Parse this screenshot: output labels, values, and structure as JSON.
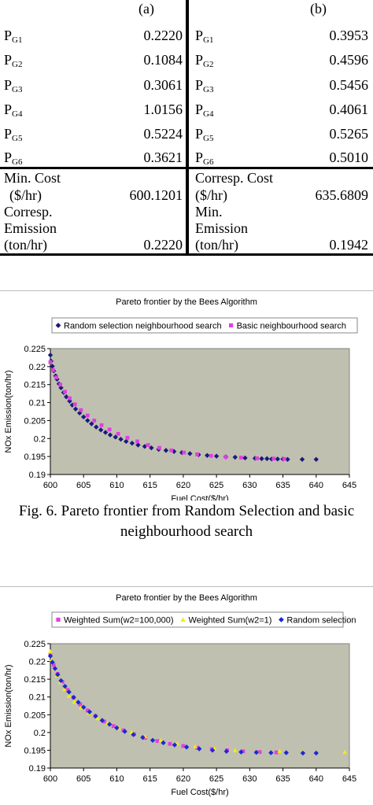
{
  "table": {
    "col_a": {
      "header": "(a)",
      "rows": [
        {
          "label": "P",
          "sub": "G1",
          "value": "0.2220"
        },
        {
          "label": "P",
          "sub": "G2",
          "value": "0.1084"
        },
        {
          "label": "P",
          "sub": "G3",
          "value": "0.3061"
        },
        {
          "label": "P",
          "sub": "G4",
          "value": "1.0156"
        },
        {
          "label": "P",
          "sub": "G5",
          "value": "0.5224"
        },
        {
          "label": "P",
          "sub": "G6",
          "value": "0.3621"
        }
      ],
      "summary": {
        "line1": "Min. Cost",
        "line2": "($/hr)",
        "value1": "600.1201",
        "line3": "Corresp.",
        "line4": "Emission",
        "line5": "(ton/hr)",
        "value2": "0.2220"
      }
    },
    "col_b": {
      "header": "(b)",
      "rows": [
        {
          "label": "P",
          "sub": "G1",
          "value": "0.3953"
        },
        {
          "label": "P",
          "sub": "G2",
          "value": "0.4596"
        },
        {
          "label": "P",
          "sub": "G3",
          "value": "0.5456"
        },
        {
          "label": "P",
          "sub": "G4",
          "value": "0.4061"
        },
        {
          "label": "P",
          "sub": "G5",
          "value": "0.5265"
        },
        {
          "label": "P",
          "sub": "G6",
          "value": "0.5010"
        }
      ],
      "summary": {
        "line1": "Corresp. Cost",
        "line2": "($/hr)",
        "value1": "635.6809",
        "line3": "Min.",
        "line4": "Emission",
        "line5": "(ton/hr)",
        "value2": "0.1942"
      }
    }
  },
  "fig6_caption": {
    "line1": "Fig. 6.  Pareto frontier from Random Selection and basic",
    "line2": "neighbourhood search"
  },
  "chart_data": [
    {
      "type": "scatter",
      "title": "Pareto frontier by the Bees Algorithm",
      "xlabel": "Fuel Cost($/hr)",
      "ylabel": "NOx Emission(ton/hr)",
      "xlim": [
        600,
        645
      ],
      "ylim": [
        0.19,
        0.225
      ],
      "xticks": [
        "600",
        "605",
        "610",
        "615",
        "620",
        "625",
        "630",
        "635",
        "640",
        "645"
      ],
      "yticks": [
        "0.19",
        "0.195",
        "0.2",
        "0.205",
        "0.21",
        "0.215",
        "0.22",
        "0.225"
      ],
      "grid": false,
      "legend_position": "top",
      "plot_background": "#c0c0b0",
      "series": [
        {
          "name": "Random selection neighbourhood search",
          "color": "#1a1a7a",
          "marker": "diamond",
          "points": [
            [
              600.0,
              0.2232
            ],
            [
              600.1,
              0.2215
            ],
            [
              600.3,
              0.2201
            ],
            [
              600.5,
              0.2188
            ],
            [
              600.8,
              0.2174
            ],
            [
              601.0,
              0.2165
            ],
            [
              601.3,
              0.2152
            ],
            [
              601.6,
              0.2141
            ],
            [
              602.0,
              0.2128
            ],
            [
              602.4,
              0.2116
            ],
            [
              602.9,
              0.2104
            ],
            [
              603.3,
              0.2093
            ],
            [
              603.8,
              0.2082
            ],
            [
              604.4,
              0.2071
            ],
            [
              605.0,
              0.206
            ],
            [
              605.6,
              0.205
            ],
            [
              606.2,
              0.2041
            ],
            [
              606.9,
              0.2032
            ],
            [
              607.6,
              0.2024
            ],
            [
              608.3,
              0.2017
            ],
            [
              609.0,
              0.201
            ],
            [
              609.8,
              0.2004
            ],
            [
              610.6,
              0.1998
            ],
            [
              611.4,
              0.1992
            ],
            [
              612.3,
              0.1987
            ],
            [
              613.2,
              0.1982
            ],
            [
              614.2,
              0.1978
            ],
            [
              615.2,
              0.1974
            ],
            [
              616.3,
              0.197
            ],
            [
              617.4,
              0.1967
            ],
            [
              618.6,
              0.1964
            ],
            [
              619.8,
              0.1961
            ],
            [
              621.0,
              0.1958
            ],
            [
              622.3,
              0.1955
            ],
            [
              623.6,
              0.1953
            ],
            [
              625.0,
              0.1951
            ],
            [
              626.4,
              0.1949
            ],
            [
              627.8,
              0.1948
            ],
            [
              629.3,
              0.1946
            ],
            [
              630.8,
              0.1945
            ],
            [
              631.8,
              0.1944
            ],
            [
              632.6,
              0.1944
            ],
            [
              633.3,
              0.1943
            ],
            [
              634.2,
              0.1943
            ],
            [
              635.0,
              0.1943
            ],
            [
              635.7,
              0.1942
            ],
            [
              637.9,
              0.1942
            ],
            [
              640.0,
              0.1942
            ]
          ]
        },
        {
          "name": "Basic neighbourhood search",
          "color": "#e040e0",
          "marker": "square",
          "points": [
            [
              600.0,
              0.2212
            ],
            [
              600.4,
              0.219
            ],
            [
              600.9,
              0.217
            ],
            [
              601.5,
              0.215
            ],
            [
              602.2,
              0.213
            ],
            [
              602.9,
              0.2112
            ],
            [
              603.7,
              0.2095
            ],
            [
              604.6,
              0.2079
            ],
            [
              605.6,
              0.2064
            ],
            [
              606.6,
              0.205
            ],
            [
              607.7,
              0.2037
            ],
            [
              608.9,
              0.2025
            ],
            [
              610.2,
              0.2013
            ],
            [
              611.6,
              0.2002
            ],
            [
              613.1,
              0.1992
            ],
            [
              614.7,
              0.1982
            ],
            [
              616.4,
              0.1974
            ],
            [
              618.2,
              0.1967
            ],
            [
              620.1,
              0.1961
            ],
            [
              622.1,
              0.1956
            ],
            [
              624.2,
              0.1952
            ],
            [
              626.4,
              0.1949
            ],
            [
              628.7,
              0.1947
            ],
            [
              631.1,
              0.1945
            ],
            [
              633.6,
              0.1944
            ],
            [
              635.2,
              0.1943
            ]
          ]
        }
      ]
    },
    {
      "type": "scatter",
      "title": "Pareto frontier by the Bees Algorithm",
      "xlabel": "Fuel Cost($/hr)",
      "ylabel": "NOx Emission(ton/hr)",
      "xlim": [
        600,
        645
      ],
      "ylim": [
        0.19,
        0.225
      ],
      "xticks": [
        "600",
        "605",
        "610",
        "615",
        "620",
        "625",
        "630",
        "635",
        "640",
        "645"
      ],
      "yticks": [
        "0.19",
        "0.195",
        "0.2",
        "0.205",
        "0.21",
        "0.215",
        "0.22",
        "0.225"
      ],
      "grid": false,
      "legend_position": "top",
      "plot_background": "#c0c0b0",
      "series": [
        {
          "name": "Weighted Sum(w2=100,000)",
          "color": "#e040e0",
          "marker": "square",
          "points": [
            [
              600.0,
              0.222
            ],
            [
              600.5,
              0.219
            ],
            [
              601.1,
              0.2165
            ],
            [
              601.8,
              0.2142
            ],
            [
              602.6,
              0.212
            ],
            [
              603.5,
              0.2098
            ],
            [
              604.5,
              0.2079
            ],
            [
              605.6,
              0.2062
            ],
            [
              606.8,
              0.2046
            ],
            [
              608.1,
              0.2031
            ],
            [
              609.5,
              0.2018
            ],
            [
              611.0,
              0.2006
            ],
            [
              612.6,
              0.1995
            ],
            [
              614.3,
              0.1985
            ],
            [
              616.1,
              0.1976
            ],
            [
              618.0,
              0.1968
            ],
            [
              620.0,
              0.1962
            ],
            [
              622.1,
              0.1957
            ],
            [
              624.3,
              0.1953
            ],
            [
              626.6,
              0.195
            ],
            [
              629.0,
              0.1947
            ],
            [
              631.5,
              0.1945
            ],
            [
              634.0,
              0.1944
            ]
          ]
        },
        {
          "name": "Weighted Sum(w2=1)",
          "color": "#f0f000",
          "marker": "triangle",
          "points": [
            [
              600.0,
              0.2228
            ],
            [
              600.2,
              0.2205
            ],
            [
              600.6,
              0.218
            ],
            [
              601.0,
              0.216
            ],
            [
              601.5,
              0.2142
            ],
            [
              602.1,
              0.2122
            ],
            [
              602.8,
              0.2103
            ],
            [
              603.6,
              0.2086
            ],
            [
              604.6,
              0.207
            ],
            [
              605.8,
              0.2055
            ],
            [
              607.1,
              0.204
            ],
            [
              608.6,
              0.2026
            ],
            [
              610.3,
              0.2013
            ],
            [
              612.2,
              0.2001
            ],
            [
              614.3,
              0.1989
            ],
            [
              616.6,
              0.1978
            ],
            [
              619.1,
              0.1969
            ],
            [
              621.8,
              0.1961
            ],
            [
              624.7,
              0.1955
            ],
            [
              627.8,
              0.195
            ],
            [
              631.1,
              0.1946
            ],
            [
              634.5,
              0.1948
            ],
            [
              638.0,
              0.1945
            ],
            [
              644.3,
              0.1945
            ]
          ]
        },
        {
          "name": "Random selection",
          "color": "#1a2ad0",
          "marker": "diamond",
          "points": [
            [
              600.0,
              0.2215
            ],
            [
              600.3,
              0.2198
            ],
            [
              600.7,
              0.218
            ],
            [
              601.1,
              0.2163
            ],
            [
              601.6,
              0.2146
            ],
            [
              602.2,
              0.213
            ],
            [
              602.8,
              0.2114
            ],
            [
              603.5,
              0.2099
            ],
            [
              604.2,
              0.2085
            ],
            [
              605.0,
              0.2071
            ],
            [
              605.9,
              0.2058
            ],
            [
              606.8,
              0.2046
            ],
            [
              607.8,
              0.2034
            ],
            [
              608.9,
              0.2023
            ],
            [
              610.0,
              0.2013
            ],
            [
              611.2,
              0.2003
            ],
            [
              612.5,
              0.1994
            ],
            [
              613.9,
              0.1986
            ],
            [
              615.4,
              0.1978
            ],
            [
              617.0,
              0.1971
            ],
            [
              618.7,
              0.1965
            ],
            [
              620.5,
              0.1959
            ],
            [
              622.4,
              0.1954
            ],
            [
              624.4,
              0.195
            ],
            [
              626.5,
              0.1947
            ],
            [
              628.7,
              0.1945
            ],
            [
              631.0,
              0.1944
            ],
            [
              633.2,
              0.1943
            ],
            [
              635.5,
              0.1943
            ],
            [
              638.0,
              0.1942
            ],
            [
              640.0,
              0.1942
            ]
          ]
        }
      ]
    }
  ]
}
